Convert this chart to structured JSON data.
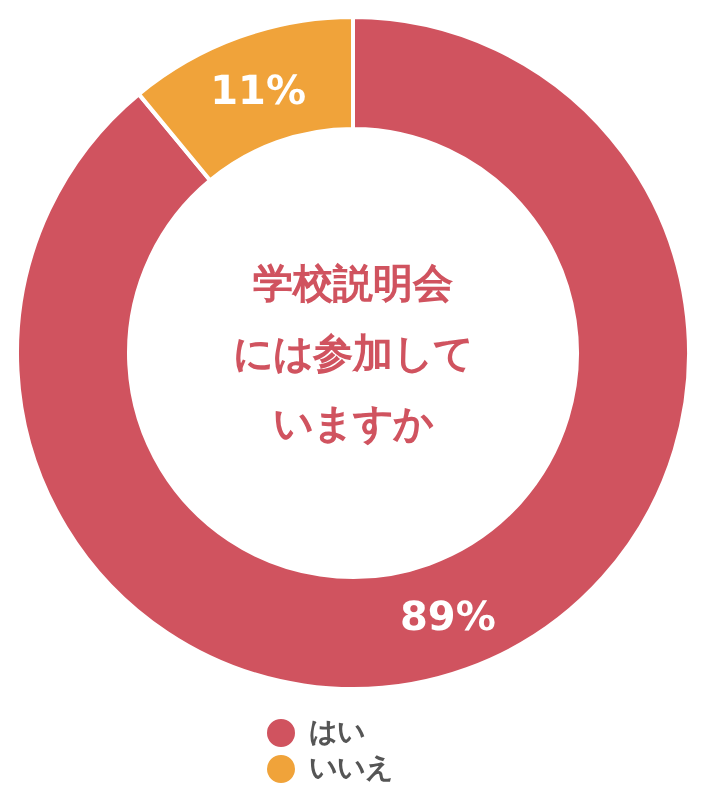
{
  "chart_data": {
    "type": "donut",
    "title": "学校説明会には参加していますか",
    "categories": [
      "はい",
      "いいえ"
    ],
    "values": [
      89,
      11
    ],
    "colors": [
      "#d0535f",
      "#f0a33a"
    ],
    "value_labels": [
      "89%",
      "11%"
    ],
    "legend": "bottom"
  }
}
